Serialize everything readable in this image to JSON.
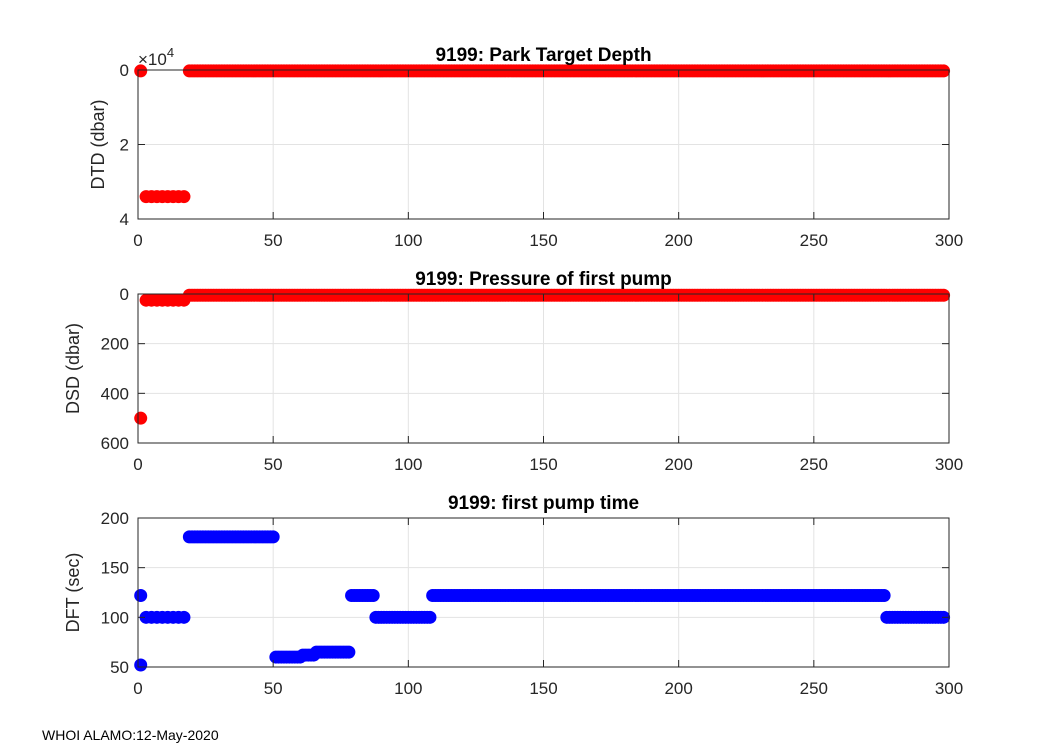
{
  "footer": "WHOI ALAMO:12-May-2020",
  "colors": {
    "red": "#ff0000",
    "blue": "#0000ff",
    "grid": "#e3e3e3",
    "axis": "#262626"
  },
  "chart_data": [
    {
      "type": "scatter",
      "title": "9199: Park Target Depth",
      "ylabel": "DTD (dbar)",
      "xlim": [
        0,
        300
      ],
      "ylim": [
        0,
        4
      ],
      "y_reversed": true,
      "y_exponent_label": "×10",
      "y_exponent": "4",
      "xticks": [
        "0",
        "50",
        "100",
        "150",
        "200",
        "250",
        "300"
      ],
      "yticks": [
        "0",
        "2",
        "4"
      ],
      "ytick_values": [
        0,
        2,
        4
      ],
      "grid": true,
      "series": [
        {
          "color": "#ff0000",
          "segments": [
            {
              "x": [
                1
              ],
              "y": 0.025
            },
            {
              "x": [
                3,
                5,
                7,
                9,
                11,
                13,
                15,
                17
              ],
              "y": 3.4
            },
            {
              "range": [
                19,
                298
              ],
              "y": 0.025
            }
          ]
        }
      ]
    },
    {
      "type": "scatter",
      "title": "9199: Pressure of first pump",
      "ylabel": "DSD (dbar)",
      "xlim": [
        0,
        300
      ],
      "ylim": [
        0,
        600
      ],
      "y_reversed": true,
      "xticks": [
        "0",
        "50",
        "100",
        "150",
        "200",
        "250",
        "300"
      ],
      "yticks": [
        "0",
        "200",
        "400",
        "600"
      ],
      "ytick_values": [
        0,
        200,
        400,
        600
      ],
      "grid": true,
      "series": [
        {
          "color": "#ff0000",
          "segments": [
            {
              "x": [
                1
              ],
              "y": 500
            },
            {
              "x": [
                3,
                5,
                7,
                9,
                11,
                13,
                15,
                17
              ],
              "y": 25
            },
            {
              "range": [
                19,
                298
              ],
              "y": 5
            }
          ]
        }
      ]
    },
    {
      "type": "scatter",
      "title": "9199: first pump time",
      "ylabel": "DFT (sec)",
      "xlim": [
        0,
        300
      ],
      "ylim": [
        50,
        200
      ],
      "y_reversed": false,
      "xticks": [
        "0",
        "50",
        "100",
        "150",
        "200",
        "250",
        "300"
      ],
      "yticks": [
        "50",
        "100",
        "150",
        "200"
      ],
      "ytick_values": [
        50,
        100,
        150,
        200
      ],
      "grid": true,
      "series": [
        {
          "color": "#0000ff",
          "segments": [
            {
              "x": [
                1
              ],
              "y": 52
            },
            {
              "x": [
                1
              ],
              "y": 122
            },
            {
              "x": [
                3,
                5,
                7,
                9,
                11,
                13,
                15,
                17
              ],
              "y": 100
            },
            {
              "range": [
                19,
                50
              ],
              "y": 181
            },
            {
              "range": [
                51,
                60
              ],
              "y": 60
            },
            {
              "range": [
                61,
                65
              ],
              "y": 62
            },
            {
              "range": [
                66,
                78
              ],
              "y": 65
            },
            {
              "range": [
                79,
                87
              ],
              "y": 122
            },
            {
              "range": [
                88,
                108
              ],
              "y": 100
            },
            {
              "range": [
                109,
                276
              ],
              "y": 122
            },
            {
              "range": [
                277,
                298
              ],
              "y": 100
            }
          ]
        }
      ]
    }
  ]
}
